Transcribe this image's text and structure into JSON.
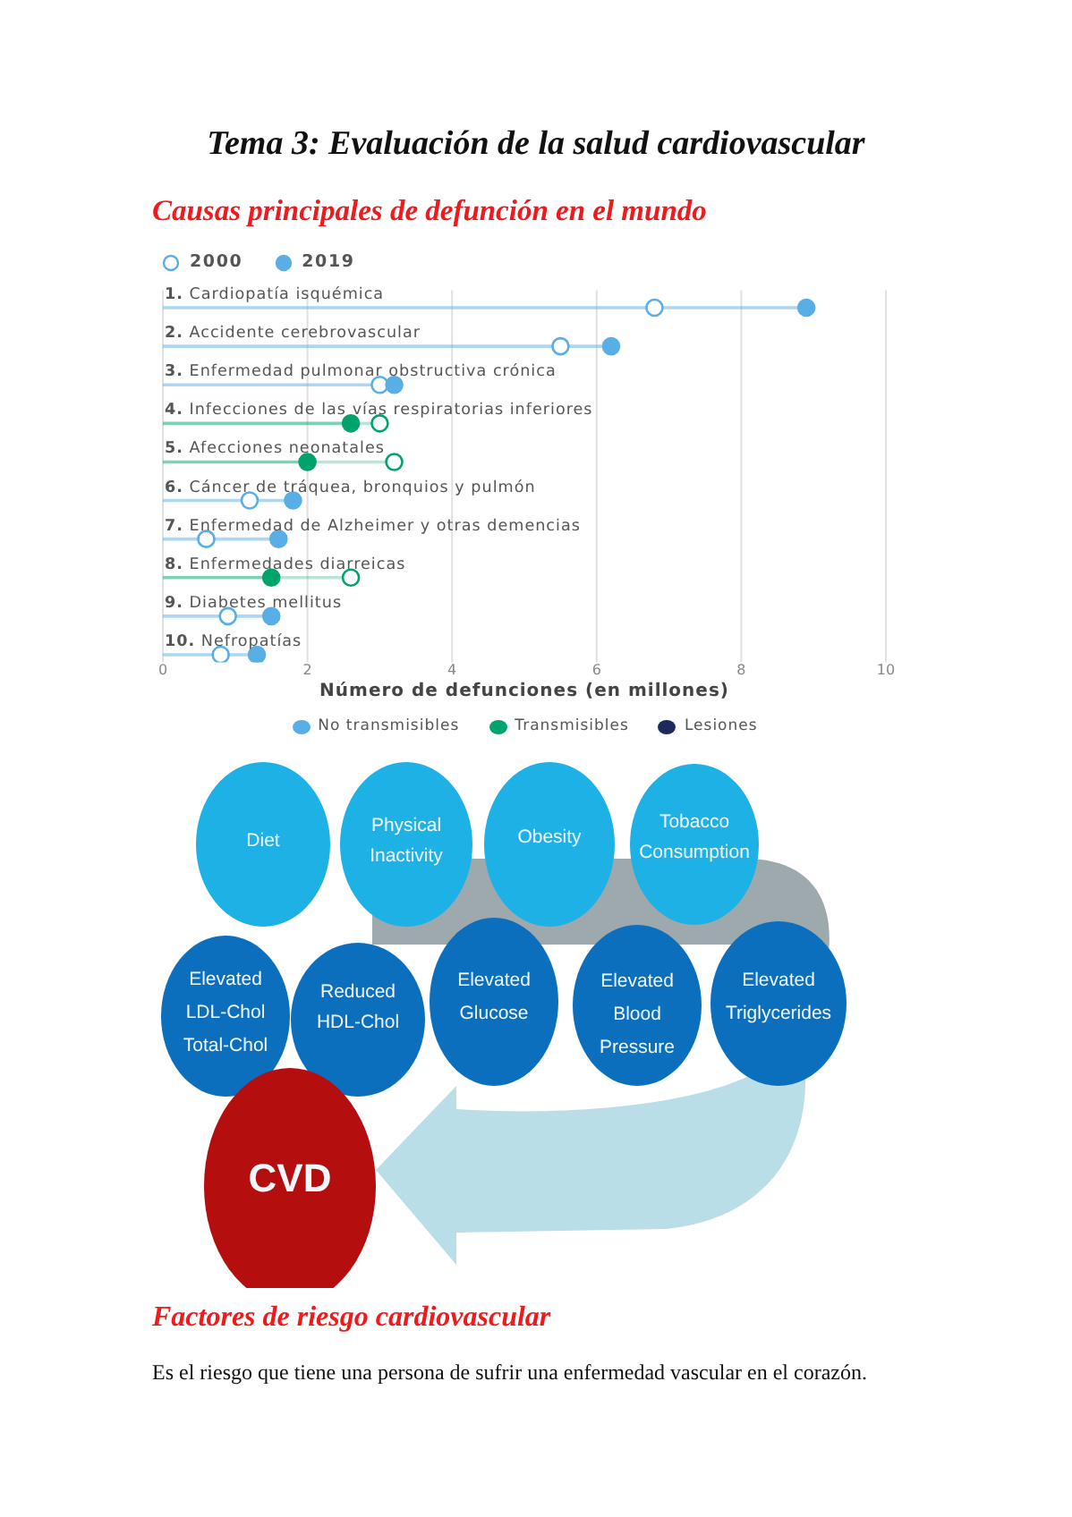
{
  "chart_data": {
    "type": "lollipop",
    "orientation": "horizontal",
    "title": "Tema 3: Evaluación de la salud cardiovascular",
    "subtitle": "Causas principales de defunción en el mundo",
    "xlabel": "Número de defunciones (en millones)",
    "categories": [
      "1. Cardiopatía isquémica",
      "2. Accidente cerebrovascular",
      "3. Enfermedad pulmonar obstructiva crónica",
      "4. Infecciones de las vías respiratorias inferiores",
      "5. Afecciones neonatales",
      "6. Cáncer de tráquea, bronquios y pulmón",
      "7. Enfermedad de Alzheimer y otras demencias",
      "8. Enfermedades diarreicas",
      "9. Diabetes mellitus",
      "10. Nefropatías"
    ],
    "series": [
      {
        "name": "2000",
        "color": "#5aaee6",
        "colors": [
          "#5aaee6",
          "#5aaee6",
          "#5aaee6",
          "#00a36c",
          "#00a36c",
          "#5aaee6",
          "#5aaee6",
          "#00a36c",
          "#5aaee6",
          "#5aaee6"
        ],
        "values": [
          6.8,
          5.5,
          3.0,
          3.0,
          3.2,
          1.2,
          0.6,
          2.6,
          0.9,
          0.8
        ]
      },
      {
        "name": "2019",
        "color": "#5aaee6",
        "colors": [
          "#5aaee6",
          "#5aaee6",
          "#5aaee6",
          "#00a36c",
          "#00a36c",
          "#5aaee6",
          "#5aaee6",
          "#00a36c",
          "#5aaee6",
          "#5aaee6"
        ],
        "values": [
          8.9,
          6.2,
          3.2,
          2.6,
          2.0,
          1.8,
          1.6,
          1.5,
          1.5,
          1.3
        ]
      },
      {
        "name": "No transmisibles",
        "color": "#5aaee6",
        "values": [
          null,
          null,
          null,
          null,
          null,
          null,
          null,
          null,
          null,
          null
        ]
      },
      {
        "name": "Transmisibles",
        "color": "#00a36c",
        "values": [
          null,
          null,
          null,
          null,
          null,
          null,
          null,
          null,
          null,
          null
        ]
      },
      {
        "name": "Lesiones",
        "color": "#1d2b5c",
        "values": [
          null,
          null,
          null,
          null,
          null,
          null,
          null,
          null,
          null,
          null
        ]
      }
    ],
    "xlim": [
      0,
      10
    ],
    "xticks": [
      0,
      2,
      4,
      6,
      8,
      10
    ],
    "grid": "x",
    "legend": "bottom",
    "marker": "circle",
    "annotations": [
      "Diet",
      "Physical Inactivity",
      "Obesity",
      "Tobacco Consumption",
      "Elevated LDL-Chol Total-Chol",
      "Reduced HDL-Chol",
      "Elevated Glucose",
      "Elevated Blood Pressure",
      "Elevated Triglycerides",
      "CVD",
      "Factores de riesgo cardiovascular",
      "Es el riesgo que tiene una persona de sufrir una enfermedad vascular en el corazón."
    ]
  }
}
